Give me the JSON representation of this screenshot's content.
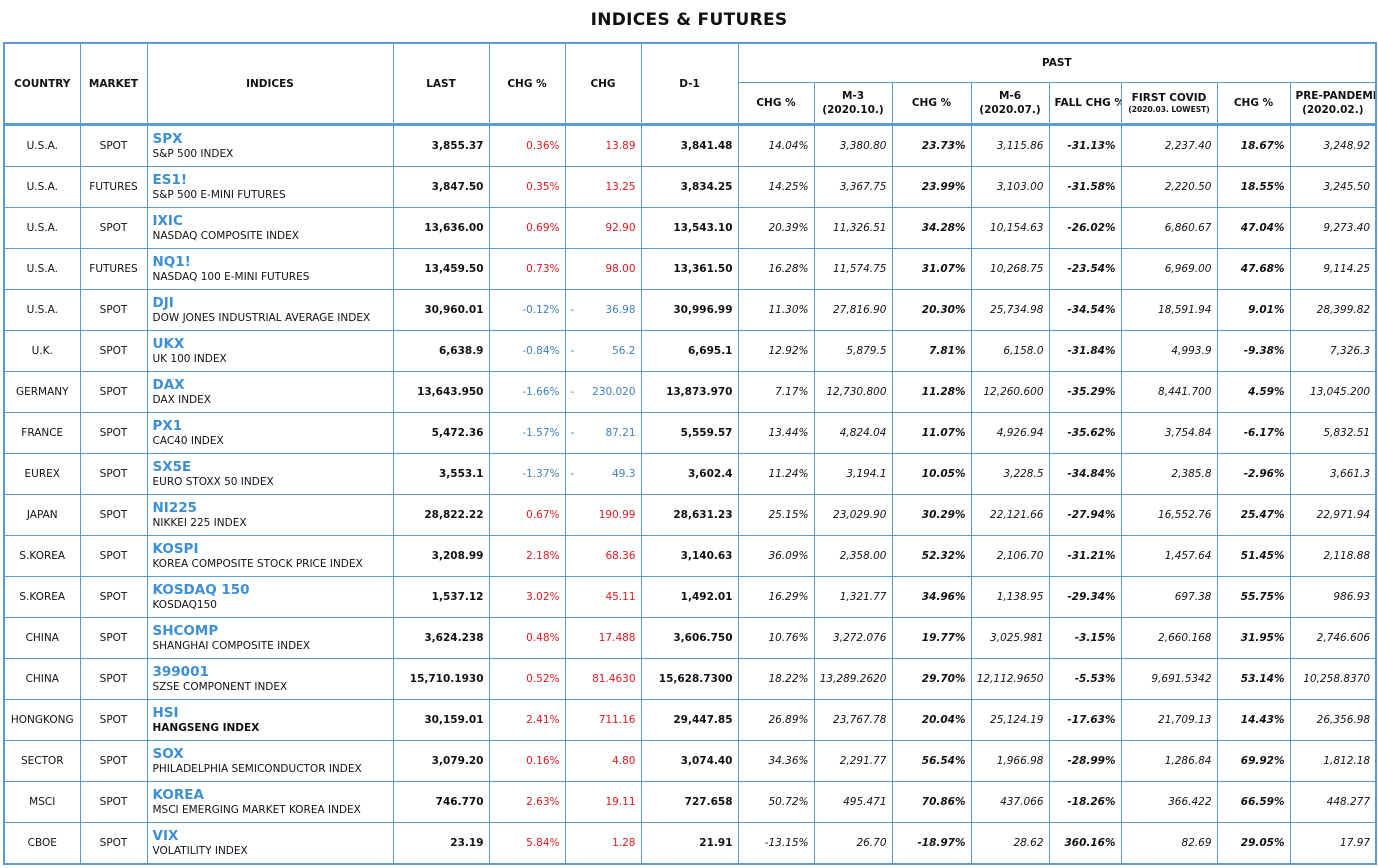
{
  "title": "INDICES & FUTURES",
  "headers": {
    "country": "COUNTRY",
    "market": "MARKET",
    "indices": "INDICES",
    "last": "LAST",
    "chg_pct": "CHG %",
    "chg": "CHG",
    "d1": "D-1",
    "past": "PAST",
    "past_cols": [
      {
        "l1": "CHG %",
        "l2": ""
      },
      {
        "l1": "M-3",
        "l2": "(2020.10.)"
      },
      {
        "l1": "CHG %",
        "l2": ""
      },
      {
        "l1": "M-6",
        "l2": "(2020.07.)"
      },
      {
        "l1": "FALL CHG %",
        "l2": ""
      },
      {
        "l1": "FIRST COVID",
        "l2": "(2020.03. LOWEST)"
      },
      {
        "l1": "CHG %",
        "l2": ""
      },
      {
        "l1": "PRE-PANDEMIC",
        "l2": "(2020.02.)"
      }
    ]
  },
  "colors": {
    "border": "#5b9bd5",
    "symbol": "#3d8fd4",
    "positive": "#e0191e",
    "negative": "#3d7fbf"
  },
  "rows": [
    {
      "country": "U.S.A.",
      "market": "SPOT",
      "symbol": "SPX",
      "name": "S&P 500 INDEX",
      "last": "3,855.37",
      "chg_pct": "0.36%",
      "chg": "13.89",
      "dir": "up",
      "d1": "3,841.48",
      "m3_chg": "14.04%",
      "m3": "3,380.80",
      "m6_chg": "23.73%",
      "m6": "3,115.86",
      "fall_chg": "-31.13%",
      "covid": "2,237.40",
      "covid_chg": "18.67%",
      "pre": "3,248.92"
    },
    {
      "country": "U.S.A.",
      "market": "FUTURES",
      "symbol": "ES1!",
      "name": "S&P 500 E-MINI FUTURES",
      "last": "3,847.50",
      "chg_pct": "0.35%",
      "chg": "13.25",
      "dir": "up",
      "d1": "3,834.25",
      "m3_chg": "14.25%",
      "m3": "3,367.75",
      "m6_chg": "23.99%",
      "m6": "3,103.00",
      "fall_chg": "-31.58%",
      "covid": "2,220.50",
      "covid_chg": "18.55%",
      "pre": "3,245.50"
    },
    {
      "country": "U.S.A.",
      "market": "SPOT",
      "symbol": "IXIC",
      "name": "NASDAQ COMPOSITE INDEX",
      "last": "13,636.00",
      "chg_pct": "0.69%",
      "chg": "92.90",
      "dir": "up",
      "d1": "13,543.10",
      "m3_chg": "20.39%",
      "m3": "11,326.51",
      "m6_chg": "34.28%",
      "m6": "10,154.63",
      "fall_chg": "-26.02%",
      "covid": "6,860.67",
      "covid_chg": "47.04%",
      "pre": "9,273.40"
    },
    {
      "country": "U.S.A.",
      "market": "FUTURES",
      "symbol": "NQ1!",
      "name": "NASDAQ 100 E-MINI FUTURES",
      "last": "13,459.50",
      "chg_pct": "0.73%",
      "chg": "98.00",
      "dir": "up",
      "d1": "13,361.50",
      "m3_chg": "16.28%",
      "m3": "11,574.75",
      "m6_chg": "31.07%",
      "m6": "10,268.75",
      "fall_chg": "-23.54%",
      "covid": "6,969.00",
      "covid_chg": "47.68%",
      "pre": "9,114.25"
    },
    {
      "country": "U.S.A.",
      "market": "SPOT",
      "symbol": "DJI",
      "name": "DOW JONES INDUSTRIAL AVERAGE INDEX",
      "last": "30,960.01",
      "chg_pct": "-0.12%",
      "chg": "36.98",
      "dir": "down",
      "d1": "30,996.99",
      "m3_chg": "11.30%",
      "m3": "27,816.90",
      "m6_chg": "20.30%",
      "m6": "25,734.98",
      "fall_chg": "-34.54%",
      "covid": "18,591.94",
      "covid_chg": "9.01%",
      "pre": "28,399.82"
    },
    {
      "country": "U.K.",
      "market": "SPOT",
      "symbol": "UKX",
      "name": "UK 100 INDEX",
      "last": "6,638.9",
      "chg_pct": "-0.84%",
      "chg": "56.2",
      "dir": "down",
      "d1": "6,695.1",
      "m3_chg": "12.92%",
      "m3": "5,879.5",
      "m6_chg": "7.81%",
      "m6": "6,158.0",
      "fall_chg": "-31.84%",
      "covid": "4,993.9",
      "covid_chg": "-9.38%",
      "pre": "7,326.3"
    },
    {
      "country": "GERMANY",
      "market": "SPOT",
      "symbol": "DAX",
      "name": "DAX INDEX",
      "last": "13,643.950",
      "chg_pct": "-1.66%",
      "chg": "230.020",
      "dir": "down",
      "d1": "13,873.970",
      "m3_chg": "7.17%",
      "m3": "12,730.800",
      "m6_chg": "11.28%",
      "m6": "12,260.600",
      "fall_chg": "-35.29%",
      "covid": "8,441.700",
      "covid_chg": "4.59%",
      "pre": "13,045.200"
    },
    {
      "country": "FRANCE",
      "market": "SPOT",
      "symbol": "PX1",
      "name": "CAC40 INDEX",
      "last": "5,472.36",
      "chg_pct": "-1.57%",
      "chg": "87.21",
      "dir": "down",
      "d1": "5,559.57",
      "m3_chg": "13.44%",
      "m3": "4,824.04",
      "m6_chg": "11.07%",
      "m6": "4,926.94",
      "fall_chg": "-35.62%",
      "covid": "3,754.84",
      "covid_chg": "-6.17%",
      "pre": "5,832.51"
    },
    {
      "country": "EUREX",
      "market": "SPOT",
      "symbol": "SX5E",
      "name": "EURO STOXX 50 INDEX",
      "last": "3,553.1",
      "chg_pct": "-1.37%",
      "chg": "49.3",
      "dir": "down",
      "d1": "3,602.4",
      "m3_chg": "11.24%",
      "m3": "3,194.1",
      "m6_chg": "10.05%",
      "m6": "3,228.5",
      "fall_chg": "-34.84%",
      "covid": "2,385.8",
      "covid_chg": "-2.96%",
      "pre": "3,661.3"
    },
    {
      "country": "JAPAN",
      "market": "SPOT",
      "symbol": "NI225",
      "name": "NIKKEI 225 INDEX",
      "last": "28,822.22",
      "chg_pct": "0.67%",
      "chg": "190.99",
      "dir": "up",
      "d1": "28,631.23",
      "m3_chg": "25.15%",
      "m3": "23,029.90",
      "m6_chg": "30.29%",
      "m6": "22,121.66",
      "fall_chg": "-27.94%",
      "covid": "16,552.76",
      "covid_chg": "25.47%",
      "pre": "22,971.94"
    },
    {
      "country": "S.KOREA",
      "market": "SPOT",
      "symbol": "KOSPI",
      "name": "KOREA COMPOSITE STOCK PRICE INDEX",
      "last": "3,208.99",
      "chg_pct": "2.18%",
      "chg": "68.36",
      "dir": "up",
      "d1": "3,140.63",
      "m3_chg": "36.09%",
      "m3": "2,358.00",
      "m6_chg": "52.32%",
      "m6": "2,106.70",
      "fall_chg": "-31.21%",
      "covid": "1,457.64",
      "covid_chg": "51.45%",
      "pre": "2,118.88"
    },
    {
      "country": "S.KOREA",
      "market": "SPOT",
      "symbol": "KOSDAQ 150",
      "name": "KOSDAQ150",
      "last": "1,537.12",
      "chg_pct": "3.02%",
      "chg": "45.11",
      "dir": "up",
      "d1": "1,492.01",
      "m3_chg": "16.29%",
      "m3": "1,321.77",
      "m6_chg": "34.96%",
      "m6": "1,138.95",
      "fall_chg": "-29.34%",
      "covid": "697.38",
      "covid_chg": "55.75%",
      "pre": "986.93"
    },
    {
      "country": "CHINA",
      "market": "SPOT",
      "symbol": "SHCOMP",
      "name": "SHANGHAI COMPOSITE INDEX",
      "last": "3,624.238",
      "chg_pct": "0.48%",
      "chg": "17.488",
      "dir": "up",
      "d1": "3,606.750",
      "m3_chg": "10.76%",
      "m3": "3,272.076",
      "m6_chg": "19.77%",
      "m6": "3,025.981",
      "fall_chg": "-3.15%",
      "covid": "2,660.168",
      "covid_chg": "31.95%",
      "pre": "2,746.606"
    },
    {
      "country": "CHINA",
      "market": "SPOT",
      "symbol": "399001",
      "name": "SZSE COMPONENT INDEX",
      "last": "15,710.1930",
      "chg_pct": "0.52%",
      "chg": "81.4630",
      "dir": "up",
      "d1": "15,628.7300",
      "m3_chg": "18.22%",
      "m3": "13,289.2620",
      "m6_chg": "29.70%",
      "m6": "12,112.9650",
      "fall_chg": "-5.53%",
      "covid": "9,691.5342",
      "covid_chg": "53.14%",
      "pre": "10,258.8370"
    },
    {
      "country": "HONGKONG",
      "market": "SPOT",
      "symbol": "HSI",
      "name": "HANGSENG INDEX",
      "name_bold": true,
      "last": "30,159.01",
      "chg_pct": "2.41%",
      "chg": "711.16",
      "dir": "up",
      "d1": "29,447.85",
      "m3_chg": "26.89%",
      "m3": "23,767.78",
      "m6_chg": "20.04%",
      "m6": "25,124.19",
      "fall_chg": "-17.63%",
      "covid": "21,709.13",
      "covid_chg": "14.43%",
      "pre": "26,356.98"
    },
    {
      "country": "SECTOR",
      "market": "SPOT",
      "symbol": "SOX",
      "name": "PHILADELPHIA SEMICONDUCTOR INDEX",
      "last": "3,079.20",
      "chg_pct": "0.16%",
      "chg": "4.80",
      "dir": "up",
      "d1": "3,074.40",
      "m3_chg": "34.36%",
      "m3": "2,291.77",
      "m6_chg": "56.54%",
      "m6": "1,966.98",
      "fall_chg": "-28.99%",
      "covid": "1,286.84",
      "covid_chg": "69.92%",
      "pre": "1,812.18"
    },
    {
      "country": "MSCI",
      "market": "SPOT",
      "symbol": "KOREA",
      "name": "MSCI EMERGING MARKET KOREA INDEX",
      "last": "746.770",
      "chg_pct": "2.63%",
      "chg": "19.11",
      "dir": "up",
      "d1": "727.658",
      "m3_chg": "50.72%",
      "m3": "495.471",
      "m6_chg": "70.86%",
      "m6": "437.066",
      "fall_chg": "-18.26%",
      "covid": "366.422",
      "covid_chg": "66.59%",
      "pre": "448.277"
    },
    {
      "country": "CBOE",
      "market": "SPOT",
      "symbol": "VIX",
      "name": "VOLATILITY INDEX",
      "last": "23.19",
      "chg_pct": "5.84%",
      "chg": "1.28",
      "dir": "up",
      "d1": "21.91",
      "m3_chg": "-13.15%",
      "m3": "26.70",
      "m6_chg": "-18.97%",
      "m6": "28.62",
      "fall_chg": "360.16%",
      "covid": "82.69",
      "covid_chg": "29.05%",
      "pre": "17.97"
    }
  ]
}
